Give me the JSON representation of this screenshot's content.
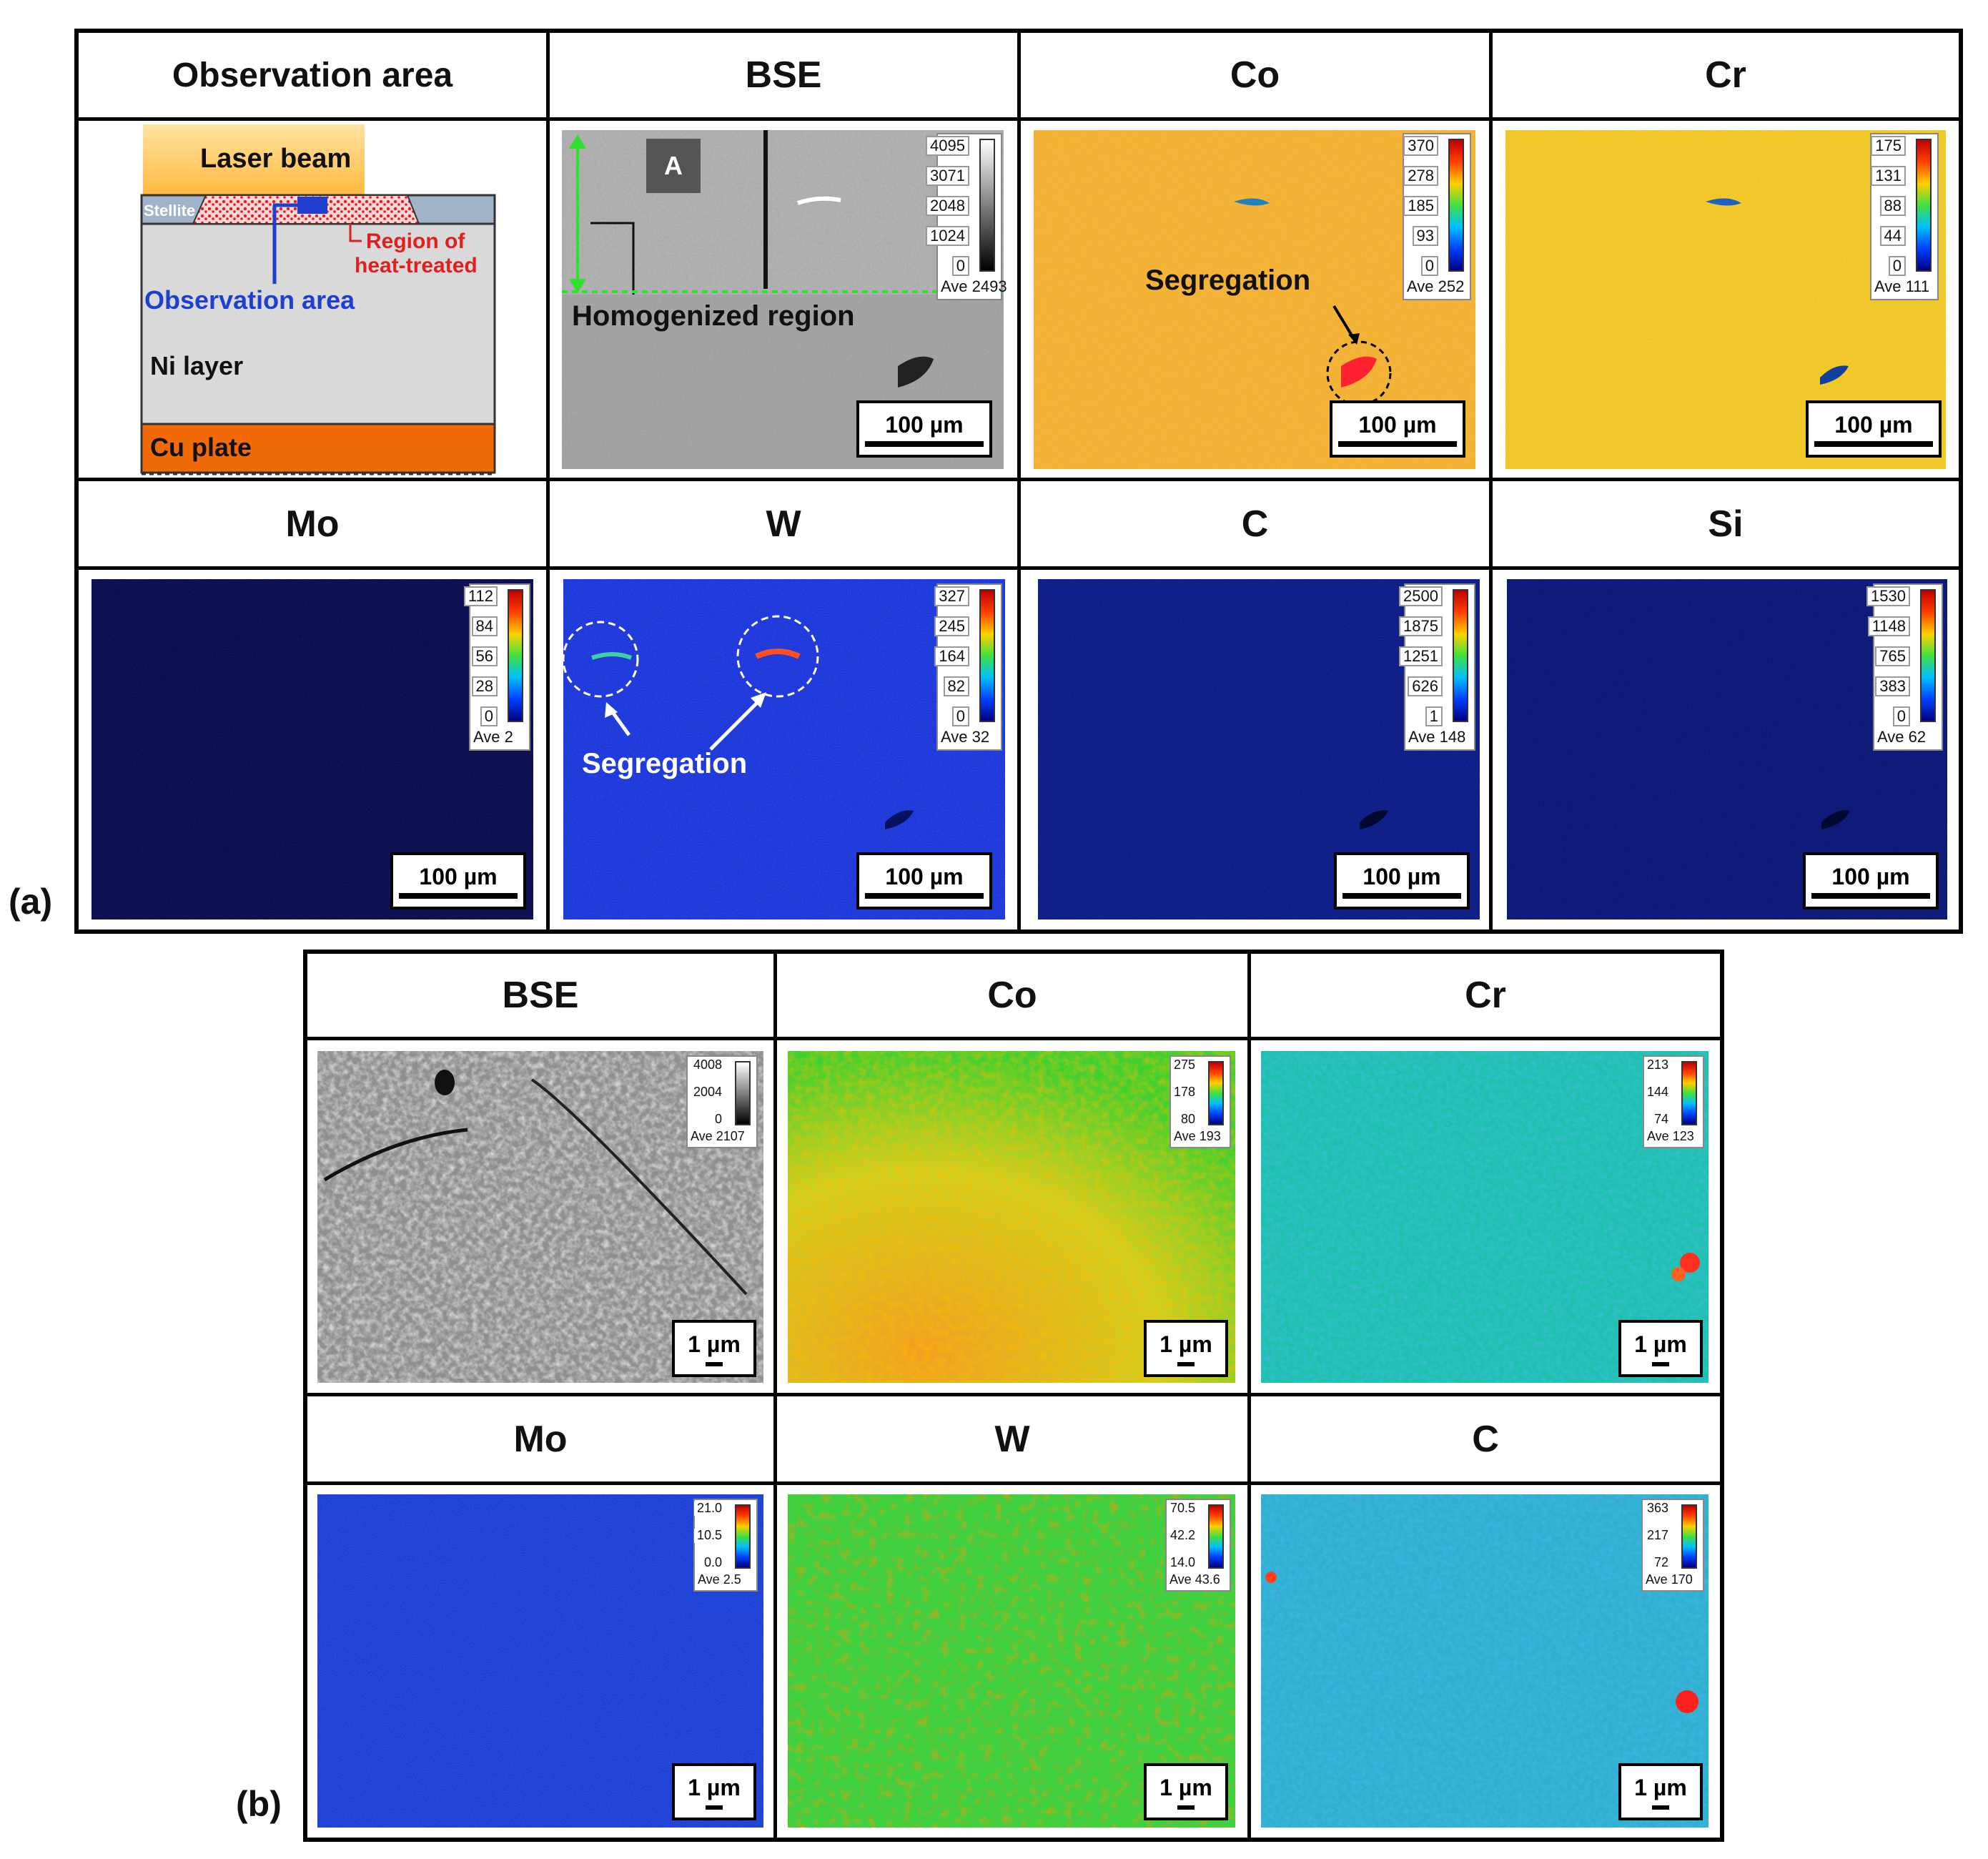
{
  "part_a": {
    "label": "(a)",
    "row1_headers": [
      "Observation area",
      "BSE",
      "Co",
      "Cr"
    ],
    "row2_headers": [
      "Mo",
      "W",
      "C",
      "Si"
    ],
    "scale_label": "100 µm",
    "schematic": {
      "laser": "Laser beam",
      "stellite": "Stellite",
      "region_line1": "Region of",
      "region_line2": "heat-treated",
      "observation": "Observation area",
      "ni_layer": "Ni layer",
      "cu_plate": "Cu plate"
    },
    "bse": {
      "box_label": "A",
      "homogenized": "Homogenized region",
      "ticks": [
        "4095",
        "3071",
        "2048",
        "1024",
        "0"
      ],
      "ave": "Ave 2493"
    },
    "co": {
      "ticks": [
        "370",
        "278",
        "185",
        "93",
        "0"
      ],
      "ave": "Ave 252",
      "annotation": "Segregation"
    },
    "cr": {
      "ticks": [
        "175",
        "131",
        "88",
        "44",
        "0"
      ],
      "ave": "Ave 111"
    },
    "mo": {
      "ticks": [
        "112",
        "84",
        "56",
        "28",
        "0"
      ],
      "ave": "Ave 2"
    },
    "w": {
      "ticks": [
        "327",
        "245",
        "164",
        "82",
        "0"
      ],
      "ave": "Ave 32",
      "annotation": "Segregation"
    },
    "c": {
      "ticks": [
        "2500",
        "1875",
        "1251",
        "626",
        "1"
      ],
      "ave": "Ave 148"
    },
    "si": {
      "ticks": [
        "1530",
        "1148",
        "765",
        "383",
        "0"
      ],
      "ave": "Ave 62"
    }
  },
  "part_b": {
    "label": "(b)",
    "row1_headers": [
      "BSE",
      "Co",
      "Cr"
    ],
    "row2_headers": [
      "Mo",
      "W",
      "C"
    ],
    "scale_label": "1 µm",
    "bse": {
      "ticks": [
        "4008",
        "2004",
        "0"
      ],
      "ave": "Ave 2107"
    },
    "co": {
      "ticks": [
        "275",
        "178",
        "80"
      ],
      "ave": "Ave 193"
    },
    "cr": {
      "ticks": [
        "213",
        "144",
        "74"
      ],
      "ave": "Ave 123"
    },
    "mo": {
      "ticks": [
        "21.0",
        "10.5",
        "0.0"
      ],
      "ave": "Ave 2.5"
    },
    "w": {
      "ticks": [
        "70.5",
        "42.2",
        "14.0"
      ],
      "ave": "Ave 43.6"
    },
    "c": {
      "ticks": [
        "363",
        "217",
        "72"
      ],
      "ave": "Ave 170"
    }
  },
  "colors": {
    "jet": "linear-gradient(to bottom,#c00000,#ff4000,#ffd000,#40e040,#00c0ff,#0040ff,#000080)",
    "gray": "linear-gradient(to bottom,#ffffff,#000000)"
  }
}
